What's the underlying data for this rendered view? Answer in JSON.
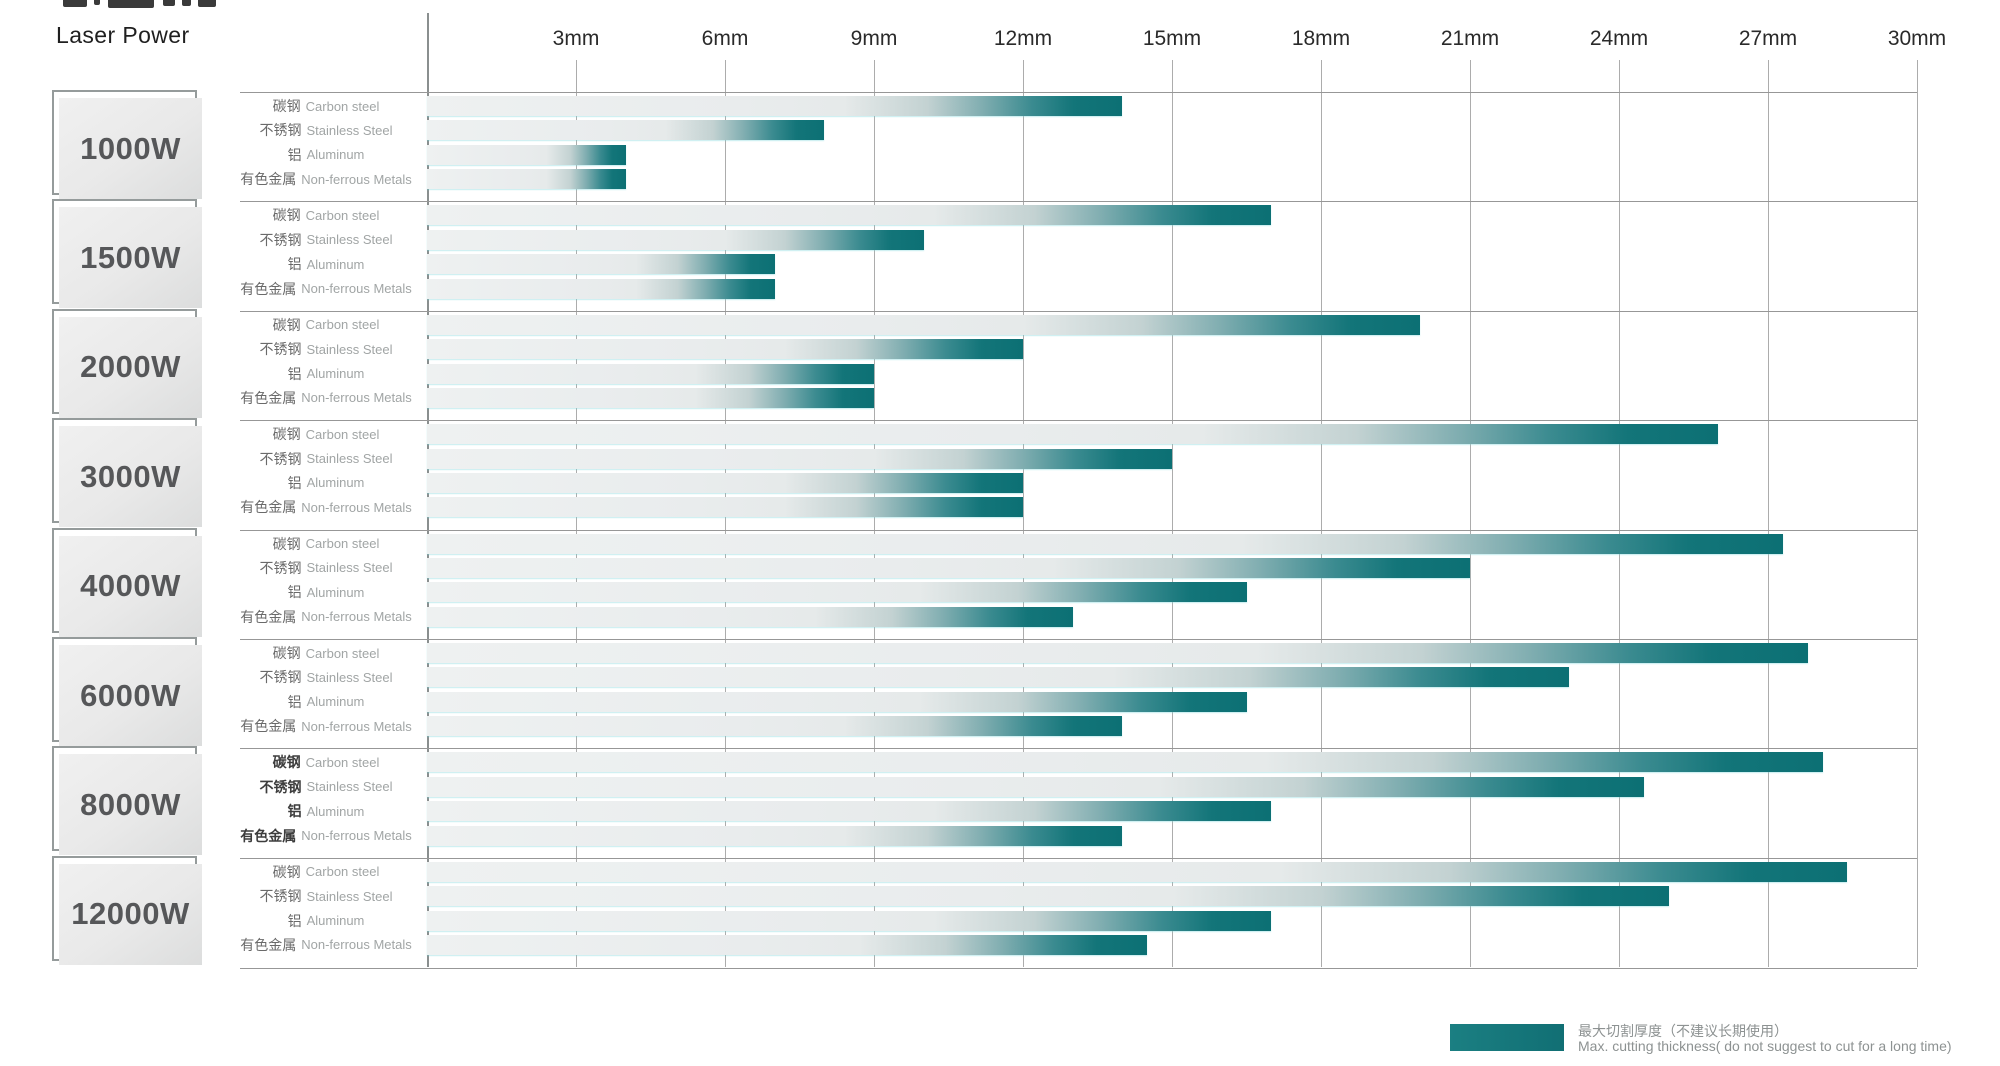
{
  "header": {
    "laser_power_label": "Laser Power"
  },
  "axis": {
    "ticks": [
      "3mm",
      "6mm",
      "9mm",
      "12mm",
      "15mm",
      "18mm",
      "21mm",
      "24mm",
      "27mm",
      "30mm"
    ]
  },
  "legend": {
    "line_zh": "最大切割厚度（不建议长期使用）",
    "line_en": "Max. cutting thickness( do not suggest to cut for a long time)",
    "swatch_color": "#15767a"
  },
  "colors": {
    "teal_bar_end": "#0c7074",
    "bar_base_gray": "#e9eced",
    "gridline": "#acacac",
    "block_border": "#979797"
  },
  "chart_data": {
    "type": "bar",
    "orientation": "horizontal-grouped",
    "title": "Laser Power",
    "x_unit": "mm",
    "x_axis": {
      "ticks_mm": [
        3,
        6,
        9,
        12,
        15,
        18,
        21,
        24,
        27,
        30
      ],
      "range": [
        0,
        30
      ],
      "grid": true
    },
    "categories": [
      "1000W",
      "1500W",
      "2000W",
      "3000W",
      "4000W",
      "6000W",
      "8000W",
      "12000W"
    ],
    "series": [
      {
        "zh": "碳钢",
        "en": "Carbon steel",
        "values_mm": [
          14,
          17,
          20,
          26,
          27.3,
          27.8,
          28.1,
          28.6
        ]
      },
      {
        "zh": "不锈钢",
        "en": "Stainless Steel",
        "values_mm": [
          8,
          10,
          12,
          15,
          21,
          23,
          24.5,
          25
        ]
      },
      {
        "zh": "铝",
        "en": "Aluminum",
        "values_mm": [
          4,
          7,
          9,
          12,
          16.5,
          16.5,
          17,
          17
        ]
      },
      {
        "zh": "有色金属",
        "en": "Non-ferrous Metals",
        "values_mm": [
          4,
          7,
          9,
          12,
          13,
          14,
          14,
          14.5
        ]
      }
    ],
    "emphasized_category": "8000W",
    "legend_position": "bottom-right",
    "annotation": "最大切割厚度（不建议长期使用） / Max. cutting thickness( do not suggest to cut for a long time)"
  }
}
